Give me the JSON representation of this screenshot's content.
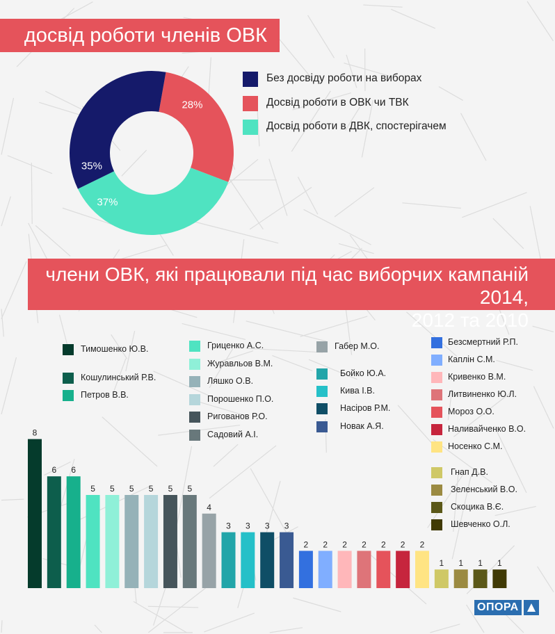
{
  "titles": {
    "donut_title": "досвід роботи членів ОВК",
    "bar_title_line1": "члени ОВК, які працювали під час виборчих кампаній 2014,",
    "bar_title_line2": "2012 та 2010"
  },
  "logo": {
    "text": "ОПОРА"
  },
  "chart_data": [
    {
      "type": "pie",
      "donut": true,
      "title": "досвід роботи членів ОВК",
      "legend_position": "right",
      "slices": [
        {
          "name": "Досвід роботи в ОВК чи ТВК",
          "value": 28,
          "label": "28%",
          "color": "#e5535b"
        },
        {
          "name": "Досвід роботи в ДВК, спостерігачем",
          "value": 37,
          "label": "37%",
          "color": "#4fe3c1"
        },
        {
          "name": "Без досвіду роботи на виборах",
          "value": 35,
          "label": "35%",
          "color": "#151a6a"
        }
      ],
      "legend_order": [
        2,
        0,
        1
      ]
    },
    {
      "type": "bar",
      "title": "члени ОВК, які працювали під час виборчих кампаній 2014, 2012 та 2010",
      "legend_position": "top",
      "grid": false,
      "ylim": [
        0,
        8
      ],
      "series": [
        {
          "name": "Тимошенко Ю.В.",
          "value": 8,
          "color": "#053b2c"
        },
        {
          "name": "Кошулинський Р.В.",
          "value": 6,
          "color": "#0d5e4c"
        },
        {
          "name": "Петров В.В.",
          "value": 6,
          "color": "#17b08c"
        },
        {
          "name": "Гриценко А.С.",
          "value": 5,
          "color": "#4fe3c1"
        },
        {
          "name": "Журавльов В.М.",
          "value": 5,
          "color": "#8ff0d8"
        },
        {
          "name": "Ляшко О.В.",
          "value": 5,
          "color": "#95b2b8"
        },
        {
          "name": "Порошенко П.О.",
          "value": 5,
          "color": "#b5d6db"
        },
        {
          "name": "Ригованов Р.О.",
          "value": 5,
          "color": "#46555b"
        },
        {
          "name": "Садовий А.І.",
          "value": 5,
          "color": "#68787b"
        },
        {
          "name": "Габер М.О.",
          "value": 4,
          "color": "#97a3a7"
        },
        {
          "name": "Бойко Ю.А.",
          "value": 3,
          "color": "#22a5a9"
        },
        {
          "name": "Кива І.В.",
          "value": 3,
          "color": "#25c0c8"
        },
        {
          "name": "Насіров Р.М.",
          "value": 3,
          "color": "#0f4e66"
        },
        {
          "name": "Новак А.Я.",
          "value": 3,
          "color": "#3a5a92"
        },
        {
          "name": "Безсмертний Р.П.",
          "value": 2,
          "color": "#3370df"
        },
        {
          "name": "Каплін С.М.",
          "value": 2,
          "color": "#80aeff"
        },
        {
          "name": "Кривенко В.М.",
          "value": 2,
          "color": "#ffb7ba"
        },
        {
          "name": "Литвиненко Ю.Л.",
          "value": 2,
          "color": "#de7479"
        },
        {
          "name": "Мороз О.О.",
          "value": 2,
          "color": "#e5535b"
        },
        {
          "name": "Наливайченко В.О.",
          "value": 2,
          "color": "#c6253d"
        },
        {
          "name": "Носенко С.М.",
          "value": 2,
          "color": "#ffe483"
        },
        {
          "name": "Гнап Д.В.",
          "value": 1,
          "color": "#cfc866"
        },
        {
          "name": "Зеленський В.О.",
          "value": 1,
          "color": "#9b8a41"
        },
        {
          "name": "Скоцика В.Є.",
          "value": 1,
          "color": "#5b5818"
        },
        {
          "name": "Шевченко О.Л.",
          "value": 1,
          "color": "#403a05"
        }
      ]
    }
  ]
}
